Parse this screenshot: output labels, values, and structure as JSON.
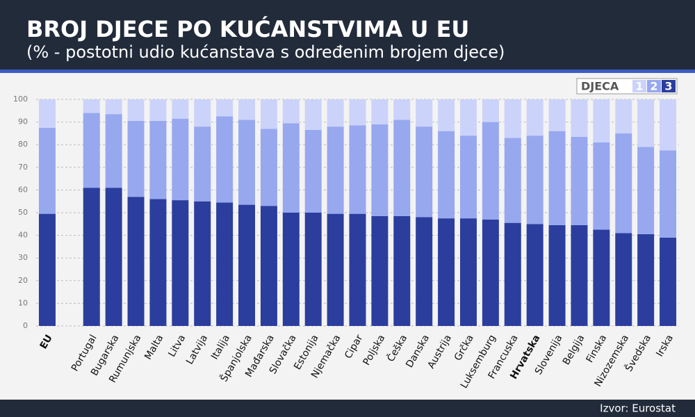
{
  "chart_data": {
    "type": "stacked_bar",
    "title": "BROJ DJECE PO KUĆANSTVIMA U EU",
    "subtitle": "(% - postotni udio kućanstava s određenim brojem djece)",
    "source": "Izvor: Eurostat",
    "legend_title": "DJECA",
    "categories": [
      "EU",
      null,
      "Portugal",
      "Bugarska",
      "Rumunjska",
      "Malta",
      "Litva",
      "Latvija",
      "Italija",
      "Španjolska",
      "Mađarska",
      "Slovačka",
      "Estonija",
      "Njemačka",
      "Cipar",
      "Poljska",
      "Češka",
      "Danska",
      "Austrija",
      "Grčka",
      "Luksemburg",
      "Francuska",
      "Hrvatska",
      "Slovenija",
      "Belgija",
      "Finska",
      "Nizozemska",
      "Švedska",
      "Irska"
    ],
    "series": [
      {
        "name": "1",
        "color": "#cbd3fa",
        "values": [
          12.5,
          null,
          6,
          6.5,
          9.5,
          9.5,
          8.5,
          12,
          7.5,
          9,
          13,
          10.5,
          13.5,
          12,
          11.5,
          11,
          9,
          12,
          14,
          16,
          10,
          17,
          16,
          14,
          16.5,
          19,
          15,
          21,
          22.5
        ]
      },
      {
        "name": "2",
        "color": "#97a8ef",
        "values": [
          38,
          null,
          33,
          32.5,
          33.5,
          34.5,
          36,
          33,
          38,
          37.5,
          34,
          39.5,
          36.5,
          38.5,
          39,
          40.5,
          42.5,
          40,
          38.5,
          36.5,
          43,
          37.5,
          39,
          41.5,
          39,
          38.5,
          44,
          38.5,
          38.5
        ]
      },
      {
        "name": "3",
        "color": "#2b3e9e",
        "values": [
          49.5,
          null,
          61,
          61,
          57,
          56,
          55.5,
          55,
          54.5,
          53.5,
          53,
          50,
          50,
          49.5,
          49.5,
          48.5,
          48.5,
          48,
          47.5,
          47.5,
          47,
          45.5,
          45,
          44.5,
          44.5,
          42.5,
          41,
          40.5,
          39
        ]
      }
    ],
    "ylim": [
      0,
      100
    ],
    "yticks": [
      0,
      10,
      20,
      30,
      40,
      50,
      60,
      70,
      80,
      90,
      100
    ],
    "grid": true
  }
}
